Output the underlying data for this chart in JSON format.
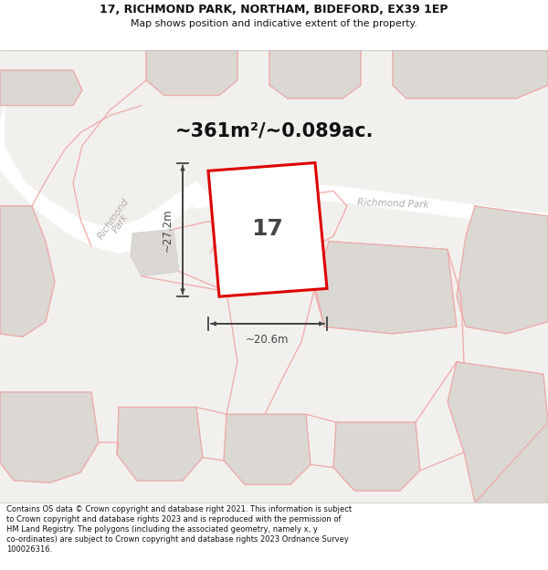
{
  "title_line1": "17, RICHMOND PARK, NORTHAM, BIDEFORD, EX39 1EP",
  "title_line2": "Map shows position and indicative extent of the property.",
  "area_text": "~361m²/~0.089ac.",
  "house_number": "17",
  "dim_width": "~20.6m",
  "dim_height": "~27.2m",
  "footer_text": "Contains OS data © Crown copyright and database right 2021. This information is subject to Crown copyright and database rights 2023 and is reproduced with the permission of HM Land Registry. The polygons (including the associated geometry, namely x, y co-ordinates) are subject to Crown copyright and database rights 2023 Ordnance Survey 100026316.",
  "bg_color": "#f2f0ed",
  "road_color": "#ffffff",
  "building_fill": "#dbd8d3",
  "building_edge": "#c8c5c0",
  "plot_outline_color": "#dd0000",
  "plot_fill_color": "#ffffff",
  "boundary_color": "#f0a8a8",
  "road_label_color": "#b0aca8",
  "dim_color": "#444444",
  "street_name_left": "Richmond\nPark",
  "street_name_right": "Richmond Park"
}
